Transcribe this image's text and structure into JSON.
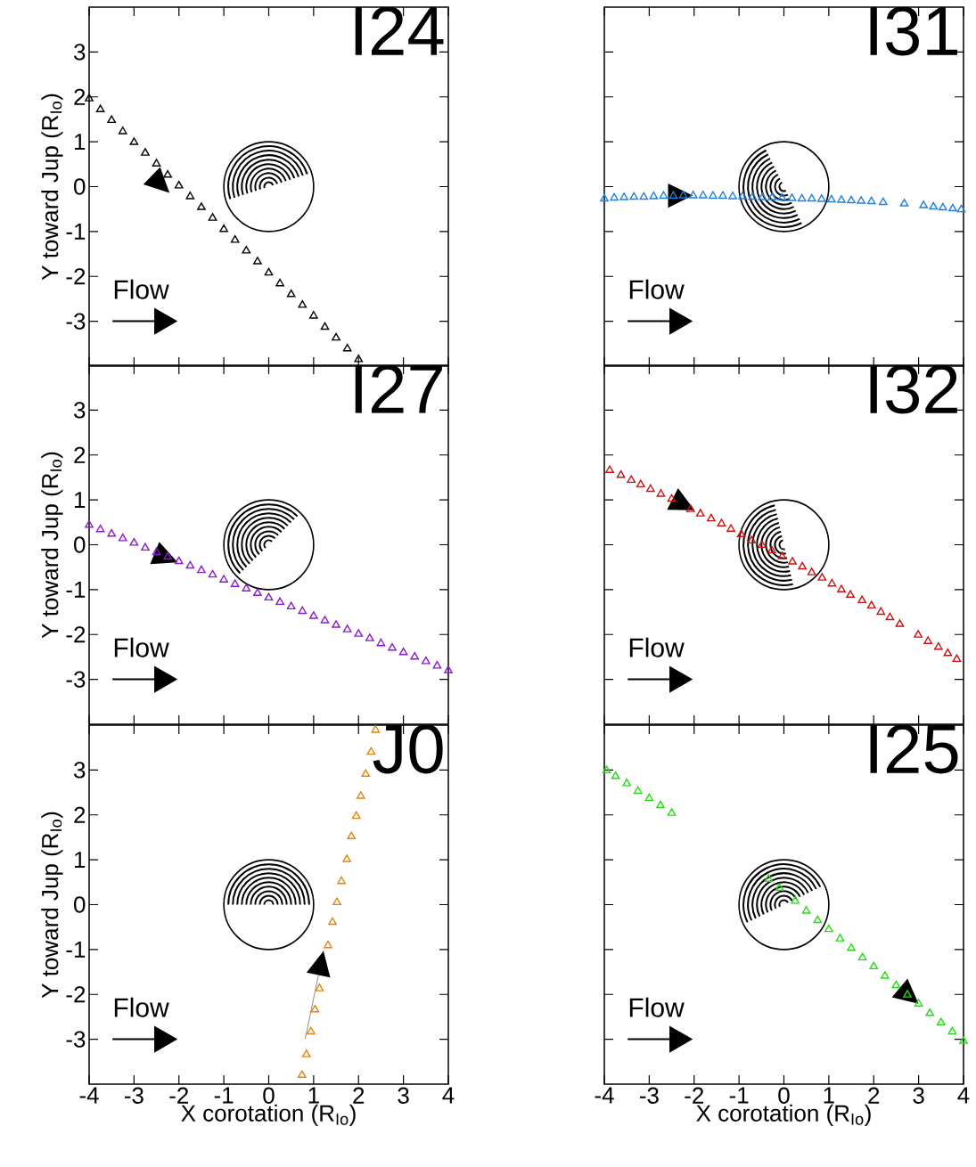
{
  "chart_data": [
    {
      "type": "scatter",
      "title": "I24",
      "ylabel": "Y toward Jup (R$_{Io}$)",
      "annotations": [
        "Flow"
      ],
      "xlim": [
        -4,
        4
      ],
      "ylim": [
        -4,
        4
      ],
      "xticks": [
        -4,
        -3,
        -2,
        -1,
        0,
        1,
        2,
        3,
        4
      ],
      "yticks": [
        -3,
        -2,
        -1,
        0,
        1,
        2,
        3
      ],
      "tick_labels": "y",
      "marker": "triangle",
      "series": [
        {
          "color": "#000000",
          "x": [
            -4,
            -3.75,
            -3.5,
            -3.25,
            -3,
            -2.75,
            -2.5,
            -2.25,
            -2,
            -1.75,
            -1.5,
            -1.25,
            -1,
            -0.75,
            -0.5,
            -0.25,
            0,
            0.25,
            0.5,
            0.75,
            1,
            1.25,
            1.5,
            1.75,
            2
          ],
          "values": [
            1.96,
            1.72,
            1.48,
            1.23,
            0.99,
            0.75,
            0.51,
            0.26,
            0.02,
            -0.22,
            -0.46,
            -0.7,
            -0.95,
            -1.19,
            -1.43,
            -1.67,
            -1.92,
            -2.16,
            -2.4,
            -2.64,
            -2.88,
            -3.13,
            -3.37,
            -3.61,
            -3.85
          ]
        }
      ]
    },
    {
      "type": "scatter",
      "title": "I31",
      "annotations": [
        "Flow"
      ],
      "xlim": [
        -4,
        4
      ],
      "ylim": [
        -4,
        4
      ],
      "xticks": [
        -4,
        -3,
        -2,
        -1,
        0,
        1,
        2,
        3,
        4
      ],
      "yticks": [
        -3,
        -2,
        -1,
        0,
        1,
        2,
        3
      ],
      "tick_labels": false,
      "marker": "triangle",
      "series": [
        {
          "color": "#1f7fe0",
          "x": [
            -4,
            -3.78,
            -3.56,
            -3.34,
            -3.12,
            -2.9,
            -2.68,
            -2.46,
            -2.24,
            -2.02,
            -1.8,
            -1.58,
            -1.36,
            -1.14,
            -0.92,
            -0.7,
            -0.48,
            -0.26,
            -0.04,
            0.18,
            0.4,
            0.62,
            0.84,
            1.06,
            1.28,
            1.5,
            1.72,
            1.95,
            2.21,
            2.68,
            3.11,
            3.33,
            3.54,
            3.76,
            3.95
          ],
          "values": [
            -0.27,
            -0.25,
            -0.24,
            -0.23,
            -0.23,
            -0.22,
            -0.21,
            -0.21,
            -0.2,
            -0.2,
            -0.2,
            -0.21,
            -0.21,
            -0.22,
            -0.22,
            -0.23,
            -0.24,
            -0.24,
            -0.25,
            -0.26,
            -0.27,
            -0.27,
            -0.28,
            -0.29,
            -0.3,
            -0.31,
            -0.32,
            -0.33,
            -0.35,
            -0.38,
            -0.42,
            -0.45,
            -0.47,
            -0.49,
            -0.51
          ]
        }
      ]
    },
    {
      "type": "scatter",
      "title": "I27",
      "ylabel": "Y toward Jup (R$_{Io}$)",
      "annotations": [
        "Flow"
      ],
      "xlim": [
        -4,
        4
      ],
      "ylim": [
        -4,
        4
      ],
      "xticks": [
        -4,
        -3,
        -2,
        -1,
        0,
        1,
        2,
        3,
        4
      ],
      "yticks": [
        -3,
        -2,
        -1,
        0,
        1,
        2,
        3
      ],
      "tick_labels": "y",
      "marker": "triangle",
      "series": [
        {
          "color": "#8a1bd1",
          "x": [
            -4,
            -3.75,
            -3.5,
            -3.25,
            -3,
            -2.75,
            -2.5,
            -2.25,
            -2,
            -1.75,
            -1.5,
            -1.25,
            -1,
            -0.75,
            -0.5,
            -0.25,
            0,
            0.25,
            0.5,
            0.75,
            1,
            1.25,
            1.5,
            1.75,
            2,
            2.25,
            2.5,
            2.75,
            3,
            3.25,
            3.5,
            3.75,
            4
          ],
          "values": [
            0.44,
            0.34,
            0.24,
            0.14,
            0.04,
            -0.07,
            -0.17,
            -0.27,
            -0.37,
            -0.47,
            -0.57,
            -0.67,
            -0.78,
            -0.88,
            -0.98,
            -1.08,
            -1.18,
            -1.28,
            -1.38,
            -1.48,
            -1.59,
            -1.69,
            -1.79,
            -1.89,
            -1.99,
            -2.09,
            -2.2,
            -2.3,
            -2.4,
            -2.5,
            -2.6,
            -2.7,
            -2.8
          ]
        }
      ]
    },
    {
      "type": "scatter",
      "title": "I32",
      "annotations": [
        "Flow"
      ],
      "xlim": [
        -4,
        4
      ],
      "ylim": [
        -4,
        4
      ],
      "xticks": [
        -4,
        -3,
        -2,
        -1,
        0,
        1,
        2,
        3,
        4
      ],
      "yticks": [
        -3,
        -2,
        -1,
        0,
        1,
        2,
        3
      ],
      "tick_labels": false,
      "marker": "triangle",
      "series": [
        {
          "color": "#cc1111",
          "x": [
            -3.88,
            -3.63,
            -3.4,
            -3.19,
            -2.97,
            -2.74,
            -2.5,
            -2.08,
            -1.86,
            -1.62,
            -1.39,
            -1.18,
            -0.95,
            -0.72,
            -0.49,
            -0.27,
            -0.04,
            0.19,
            0.41,
            0.62,
            0.85,
            1.07,
            1.28,
            1.48,
            1.74,
            1.95,
            2.16,
            2.36,
            2.58,
            2.99,
            3.21,
            3.44,
            3.65,
            3.85
          ],
          "values": [
            1.66,
            1.55,
            1.44,
            1.34,
            1.24,
            1.13,
            1.02,
            0.79,
            0.69,
            0.58,
            0.47,
            0.35,
            0.23,
            0.09,
            -0.01,
            -0.13,
            -0.26,
            -0.38,
            -0.49,
            -0.62,
            -0.74,
            -0.87,
            -1.0,
            -1.12,
            -1.24,
            -1.36,
            -1.5,
            -1.62,
            -1.77,
            -2.01,
            -2.15,
            -2.28,
            -2.42,
            -2.55
          ]
        }
      ]
    },
    {
      "type": "scatter",
      "title": "J0",
      "xlabel": "X corotation (R$_{Io}$)",
      "ylabel": "Y toward Jup (R$_{Io}$)",
      "annotations": [
        "Flow"
      ],
      "xlim": [
        -4,
        4
      ],
      "ylim": [
        -4,
        4
      ],
      "xticks": [
        -4,
        -3,
        -2,
        -1,
        0,
        1,
        2,
        3,
        4
      ],
      "yticks": [
        -3,
        -2,
        -1,
        0,
        1,
        2,
        3
      ],
      "marker": "triangle",
      "series": [
        {
          "color": "#e8820c",
          "x": [
            0.74,
            0.84,
            0.94,
            1.03,
            1.13,
            1.32,
            1.42,
            1.52,
            1.62,
            1.74,
            1.84,
            1.95,
            2.05,
            2.16,
            2.28,
            2.38
          ],
          "values": [
            -3.8,
            -3.34,
            -2.83,
            -2.34,
            -1.87,
            -0.91,
            -0.39,
            0.05,
            0.52,
            1.01,
            1.52,
            1.97,
            2.42,
            2.91,
            3.4,
            3.89
          ]
        }
      ]
    },
    {
      "type": "scatter",
      "title": "I25",
      "xlabel": "X corotation (R$_{Io}$)",
      "annotations": [
        "Flow"
      ],
      "xlim": [
        -4,
        4
      ],
      "ylim": [
        -4,
        4
      ],
      "xticks": [
        -4,
        -3,
        -2,
        -1,
        0,
        1,
        2,
        3,
        4
      ],
      "yticks": [
        -3,
        -2,
        -1,
        0,
        1,
        2,
        3
      ],
      "tick_labels": "x",
      "marker": "triangle",
      "series": [
        {
          "color": "#22dd11",
          "x": [
            -3.95,
            -3.75,
            -3.5,
            -3.25,
            -3,
            -2.75,
            -2.5,
            -0.34,
            -0.1,
            0.25,
            0.5,
            0.75,
            1,
            1.25,
            1.5,
            1.75,
            2,
            2.25,
            2.5,
            2.75,
            3,
            3.25,
            3.5,
            3.75,
            4
          ],
          "values": [
            2.99,
            2.86,
            2.7,
            2.53,
            2.37,
            2.21,
            2.04,
            0.57,
            0.37,
            0.08,
            -0.14,
            -0.35,
            -0.55,
            -0.76,
            -0.97,
            -1.18,
            -1.38,
            -1.59,
            -1.8,
            -2.01,
            -2.21,
            -2.42,
            -2.63,
            -2.83,
            -3.04
          ]
        }
      ]
    }
  ]
}
